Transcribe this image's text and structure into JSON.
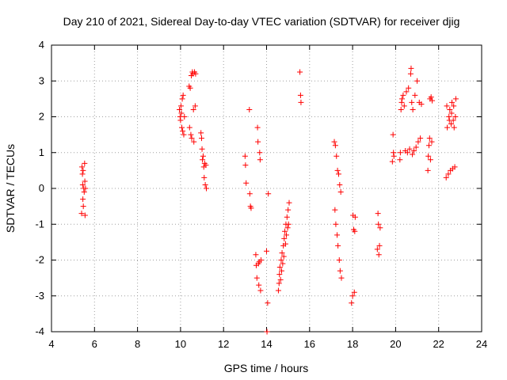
{
  "chart_data": {
    "type": "scatter",
    "title": "Day 210 of 2021, Sidereal Day-to-day VTEC variation (SDTVAR) for receiver djig",
    "xlabel": "GPS time / hours",
    "ylabel": "SDTVAR / TECUs",
    "xlim": [
      4,
      24
    ],
    "ylim": [
      -4,
      4
    ],
    "xticks": [
      4,
      6,
      8,
      10,
      12,
      14,
      16,
      18,
      20,
      22,
      24
    ],
    "yticks": [
      -4,
      -3,
      -2,
      -1,
      0,
      1,
      2,
      3,
      4
    ],
    "grid": true,
    "marker": "plus",
    "color": "#ff0000",
    "series": [
      {
        "name": "SDTVAR",
        "points": [
          [
            5.4,
            -0.7
          ],
          [
            5.42,
            0.6
          ],
          [
            5.44,
            0.4
          ],
          [
            5.45,
            0.1
          ],
          [
            5.46,
            -0.3
          ],
          [
            5.47,
            0.5
          ],
          [
            5.48,
            -0.5
          ],
          [
            5.5,
            0.0
          ],
          [
            5.52,
            -0.1
          ],
          [
            5.54,
            0.7
          ],
          [
            5.55,
            0.2
          ],
          [
            5.56,
            -0.75
          ],
          [
            5.58,
            0.0
          ],
          [
            9.95,
            2.2
          ],
          [
            9.98,
            2.0
          ],
          [
            10.0,
            1.9
          ],
          [
            10.02,
            2.3
          ],
          [
            10.04,
            2.1
          ],
          [
            10.06,
            1.7
          ],
          [
            10.08,
            2.5
          ],
          [
            10.1,
            1.6
          ],
          [
            10.12,
            2.6
          ],
          [
            10.15,
            1.5
          ],
          [
            10.18,
            2.0
          ],
          [
            10.4,
            2.85
          ],
          [
            10.42,
            1.7
          ],
          [
            10.45,
            2.8
          ],
          [
            10.48,
            1.5
          ],
          [
            10.5,
            3.15
          ],
          [
            10.52,
            1.4
          ],
          [
            10.55,
            3.25
          ],
          [
            10.58,
            3.2
          ],
          [
            10.6,
            2.2
          ],
          [
            10.62,
            1.3
          ],
          [
            10.65,
            3.25
          ],
          [
            10.68,
            2.3
          ],
          [
            10.7,
            3.2
          ],
          [
            10.95,
            1.55
          ],
          [
            10.98,
            1.4
          ],
          [
            11.0,
            1.1
          ],
          [
            11.02,
            0.8
          ],
          [
            11.05,
            0.9
          ],
          [
            11.08,
            0.6
          ],
          [
            11.1,
            0.3
          ],
          [
            11.12,
            0.7
          ],
          [
            11.15,
            0.1
          ],
          [
            11.18,
            0.65
          ],
          [
            11.2,
            0.0
          ],
          [
            13.0,
            0.9
          ],
          [
            13.02,
            0.65
          ],
          [
            13.05,
            0.15
          ],
          [
            13.2,
            2.2
          ],
          [
            13.22,
            -0.15
          ],
          [
            13.25,
            -0.5
          ],
          [
            13.28,
            -0.55
          ],
          [
            13.5,
            -1.85
          ],
          [
            13.52,
            -2.15
          ],
          [
            13.55,
            -2.5
          ],
          [
            13.58,
            1.7
          ],
          [
            13.6,
            1.3
          ],
          [
            13.62,
            -2.1
          ],
          [
            13.64,
            -2.7
          ],
          [
            13.66,
            -2.05
          ],
          [
            13.68,
            1.0
          ],
          [
            13.7,
            0.8
          ],
          [
            13.72,
            -2.85
          ],
          [
            13.74,
            -2.0
          ],
          [
            14.0,
            -1.75
          ],
          [
            14.02,
            -4.0
          ],
          [
            14.05,
            -3.2
          ],
          [
            14.08,
            -0.15
          ],
          [
            14.55,
            -2.85
          ],
          [
            14.58,
            -2.65
          ],
          [
            14.6,
            -2.4
          ],
          [
            14.62,
            -2.2
          ],
          [
            14.65,
            -2.55
          ],
          [
            14.68,
            -2.0
          ],
          [
            14.7,
            -2.3
          ],
          [
            14.72,
            -1.8
          ],
          [
            14.75,
            -2.1
          ],
          [
            14.78,
            -1.6
          ],
          [
            14.8,
            -1.9
          ],
          [
            14.82,
            -1.4
          ],
          [
            14.85,
            -1.2
          ],
          [
            14.88,
            -1.55
          ],
          [
            14.9,
            -1.0
          ],
          [
            14.92,
            -1.3
          ],
          [
            14.95,
            -0.8
          ],
          [
            14.98,
            -1.1
          ],
          [
            15.0,
            -0.6
          ],
          [
            15.02,
            -1.0
          ],
          [
            15.05,
            -0.4
          ],
          [
            15.55,
            3.25
          ],
          [
            15.58,
            2.6
          ],
          [
            15.6,
            2.4
          ],
          [
            17.15,
            1.3
          ],
          [
            17.18,
            -0.6
          ],
          [
            17.2,
            1.2
          ],
          [
            17.22,
            -1.0
          ],
          [
            17.25,
            0.9
          ],
          [
            17.28,
            -1.3
          ],
          [
            17.3,
            0.5
          ],
          [
            17.32,
            -1.6
          ],
          [
            17.35,
            0.4
          ],
          [
            17.38,
            -2.0
          ],
          [
            17.4,
            0.1
          ],
          [
            17.42,
            -2.3
          ],
          [
            17.45,
            -0.1
          ],
          [
            17.48,
            -2.5
          ],
          [
            17.95,
            -3.2
          ],
          [
            18.0,
            -3.0
          ],
          [
            18.02,
            -0.75
          ],
          [
            18.05,
            -1.15
          ],
          [
            18.08,
            -2.9
          ],
          [
            18.1,
            -1.2
          ],
          [
            18.12,
            -0.8
          ],
          [
            19.15,
            -1.7
          ],
          [
            19.18,
            -0.7
          ],
          [
            19.2,
            -1.0
          ],
          [
            19.22,
            -1.85
          ],
          [
            19.25,
            -1.6
          ],
          [
            19.28,
            -1.1
          ],
          [
            19.85,
            0.75
          ],
          [
            19.88,
            1.5
          ],
          [
            19.9,
            1.0
          ],
          [
            19.92,
            0.9
          ],
          [
            20.2,
            0.8
          ],
          [
            20.22,
            1.0
          ],
          [
            20.25,
            2.2
          ],
          [
            20.28,
            2.4
          ],
          [
            20.3,
            2.5
          ],
          [
            20.35,
            2.6
          ],
          [
            20.4,
            2.3
          ],
          [
            20.45,
            1.05
          ],
          [
            20.5,
            2.7
          ],
          [
            20.55,
            1.0
          ],
          [
            20.6,
            2.8
          ],
          [
            20.65,
            1.1
          ],
          [
            20.7,
            3.2
          ],
          [
            20.72,
            3.35
          ],
          [
            20.75,
            2.4
          ],
          [
            20.78,
            0.95
          ],
          [
            20.8,
            2.2
          ],
          [
            20.85,
            1.05
          ],
          [
            20.9,
            2.6
          ],
          [
            20.95,
            1.15
          ],
          [
            21.0,
            3.0
          ],
          [
            21.05,
            1.3
          ],
          [
            21.1,
            2.4
          ],
          [
            21.15,
            1.4
          ],
          [
            21.2,
            2.35
          ],
          [
            21.5,
            0.5
          ],
          [
            21.52,
            0.9
          ],
          [
            21.55,
            1.2
          ],
          [
            21.58,
            1.4
          ],
          [
            21.6,
            2.5
          ],
          [
            21.62,
            0.8
          ],
          [
            21.65,
            2.55
          ],
          [
            21.68,
            1.3
          ],
          [
            21.7,
            2.45
          ],
          [
            22.35,
            0.3
          ],
          [
            22.38,
            2.3
          ],
          [
            22.4,
            1.7
          ],
          [
            22.45,
            0.4
          ],
          [
            22.48,
            2.0
          ],
          [
            22.5,
            1.9
          ],
          [
            22.52,
            2.2
          ],
          [
            22.55,
            0.5
          ],
          [
            22.58,
            1.8
          ],
          [
            22.6,
            2.1
          ],
          [
            22.62,
            2.4
          ],
          [
            22.65,
            0.55
          ],
          [
            22.68,
            1.9
          ],
          [
            22.7,
            2.3
          ],
          [
            22.72,
            1.7
          ],
          [
            22.75,
            0.6
          ],
          [
            22.78,
            2.0
          ],
          [
            22.8,
            2.5
          ]
        ]
      }
    ]
  }
}
